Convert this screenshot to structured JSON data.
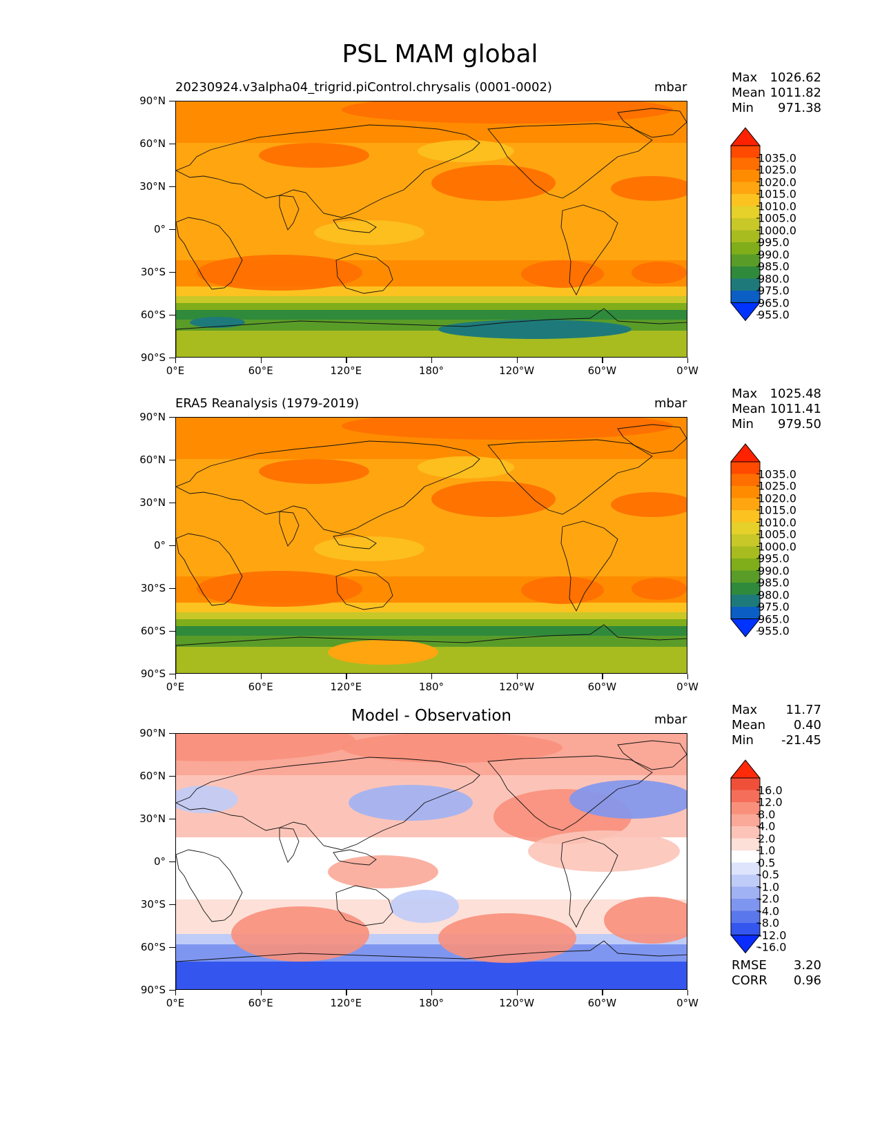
{
  "figure_title": "PSL MAM global",
  "lat_labels": [
    "90°N",
    "60°N",
    "30°N",
    "0°",
    "30°S",
    "60°S",
    "90°S"
  ],
  "lon_labels": [
    "0°E",
    "60°E",
    "120°E",
    "180°",
    "120°W",
    "60°W",
    "0°W"
  ],
  "panels": [
    {
      "title": "20230924.v3alpha04_trigrid.piControl.chrysalis (0001-0002)",
      "title_style": "left",
      "units": "mbar",
      "stats": [
        {
          "label": "Max",
          "value": "1026.62"
        },
        {
          "label": "Mean",
          "value": "1011.82"
        },
        {
          "label": "Min",
          "value": "971.38"
        }
      ],
      "colorbar_labels": [
        "1035.0",
        "1025.0",
        "1020.0",
        "1015.0",
        "1010.0",
        "1005.0",
        "1000.0",
        "995.0",
        "990.0",
        "985.0",
        "980.0",
        "975.0",
        "965.0",
        "955.0"
      ],
      "colorbar_colors": [
        "#ff2200",
        "#ff4a00",
        "#ff6e00",
        "#ff8c00",
        "#ffa510",
        "#fcc220",
        "#e6d02a",
        "#c8c828",
        "#a8bc20",
        "#7fae1a",
        "#5a9c28",
        "#2f8a3c",
        "#1e7a7a",
        "#0a5ec4",
        "#0033ff"
      ]
    },
    {
      "title": "ERA5 Reanalysis (1979-2019)",
      "title_style": "left",
      "units": "mbar",
      "stats": [
        {
          "label": "Max",
          "value": "1025.48"
        },
        {
          "label": "Mean",
          "value": "1011.41"
        },
        {
          "label": "Min",
          "value": "979.50"
        }
      ],
      "colorbar_labels": [
        "1035.0",
        "1025.0",
        "1020.0",
        "1015.0",
        "1010.0",
        "1005.0",
        "1000.0",
        "995.0",
        "990.0",
        "985.0",
        "980.0",
        "975.0",
        "965.0",
        "955.0"
      ],
      "colorbar_colors": [
        "#ff2200",
        "#ff4a00",
        "#ff6e00",
        "#ff8c00",
        "#ffa510",
        "#fcc220",
        "#e6d02a",
        "#c8c828",
        "#a8bc20",
        "#7fae1a",
        "#5a9c28",
        "#2f8a3c",
        "#1e7a7a",
        "#0a5ec4",
        "#0033ff"
      ]
    },
    {
      "title": "Model - Observation",
      "title_style": "center",
      "units": "mbar",
      "stats": [
        {
          "label": "Max",
          "value": "11.77"
        },
        {
          "label": "Mean",
          "value": "0.40"
        },
        {
          "label": "Min",
          "value": "-21.45"
        }
      ],
      "colorbar_labels": [
        "16.0",
        "12.0",
        "8.0",
        "4.0",
        "2.0",
        "1.0",
        "0.5",
        "-0.5",
        "-1.0",
        "-2.0",
        "-4.0",
        "-8.0",
        "-12.0",
        "-16.0"
      ],
      "colorbar_colors": [
        "#ff2a0a",
        "#f0503a",
        "#f56e5a",
        "#f8907c",
        "#faa898",
        "#fcc4b8",
        "#fde0d8",
        "#ffffff",
        "#dde4fc",
        "#c0ccf8",
        "#a0b2f4",
        "#7f96f0",
        "#5a78ec",
        "#3456ee",
        "#0a2cff"
      ],
      "bottom_stats": [
        {
          "label": "RMSE",
          "value": "3.20"
        },
        {
          "label": "CORR",
          "value": "0.96"
        }
      ]
    }
  ],
  "chart_data": [
    {
      "type": "heatmap",
      "title": "20230924.v3alpha04_trigrid.piControl.chrysalis (0001-0002)",
      "variable": "PSL",
      "units": "mbar",
      "xlabel": "",
      "ylabel": "",
      "x_ticks": [
        "0°E",
        "60°E",
        "120°E",
        "180°",
        "120°W",
        "60°W",
        "0°W"
      ],
      "y_ticks": [
        "90°N",
        "60°N",
        "30°N",
        "0°",
        "30°S",
        "60°S",
        "90°S"
      ],
      "levels": [
        955,
        965,
        975,
        980,
        985,
        990,
        995,
        1000,
        1005,
        1010,
        1015,
        1020,
        1025,
        1035
      ],
      "max": 1026.62,
      "mean": 1011.82,
      "min": 971.38
    },
    {
      "type": "heatmap",
      "title": "ERA5 Reanalysis (1979-2019)",
      "variable": "PSL",
      "units": "mbar",
      "xlabel": "",
      "ylabel": "",
      "x_ticks": [
        "0°E",
        "60°E",
        "120°E",
        "180°",
        "120°W",
        "60°W",
        "0°W"
      ],
      "y_ticks": [
        "90°N",
        "60°N",
        "30°N",
        "0°",
        "30°S",
        "60°S",
        "90°S"
      ],
      "levels": [
        955,
        965,
        975,
        980,
        985,
        990,
        995,
        1000,
        1005,
        1010,
        1015,
        1020,
        1025,
        1035
      ],
      "max": 1025.48,
      "mean": 1011.41,
      "min": 979.5
    },
    {
      "type": "heatmap",
      "title": "Model - Observation",
      "variable": "PSL",
      "units": "mbar",
      "xlabel": "",
      "ylabel": "",
      "x_ticks": [
        "0°E",
        "60°E",
        "120°E",
        "180°",
        "120°W",
        "60°W",
        "0°W"
      ],
      "y_ticks": [
        "90°N",
        "60°N",
        "30°N",
        "0°",
        "30°S",
        "60°S",
        "90°S"
      ],
      "levels": [
        -16,
        -12,
        -8,
        -4,
        -2,
        -1,
        -0.5,
        0.5,
        1,
        2,
        4,
        8,
        12,
        16
      ],
      "max": 11.77,
      "mean": 0.4,
      "min": -21.45,
      "rmse": 3.2,
      "corr": 0.96
    }
  ]
}
